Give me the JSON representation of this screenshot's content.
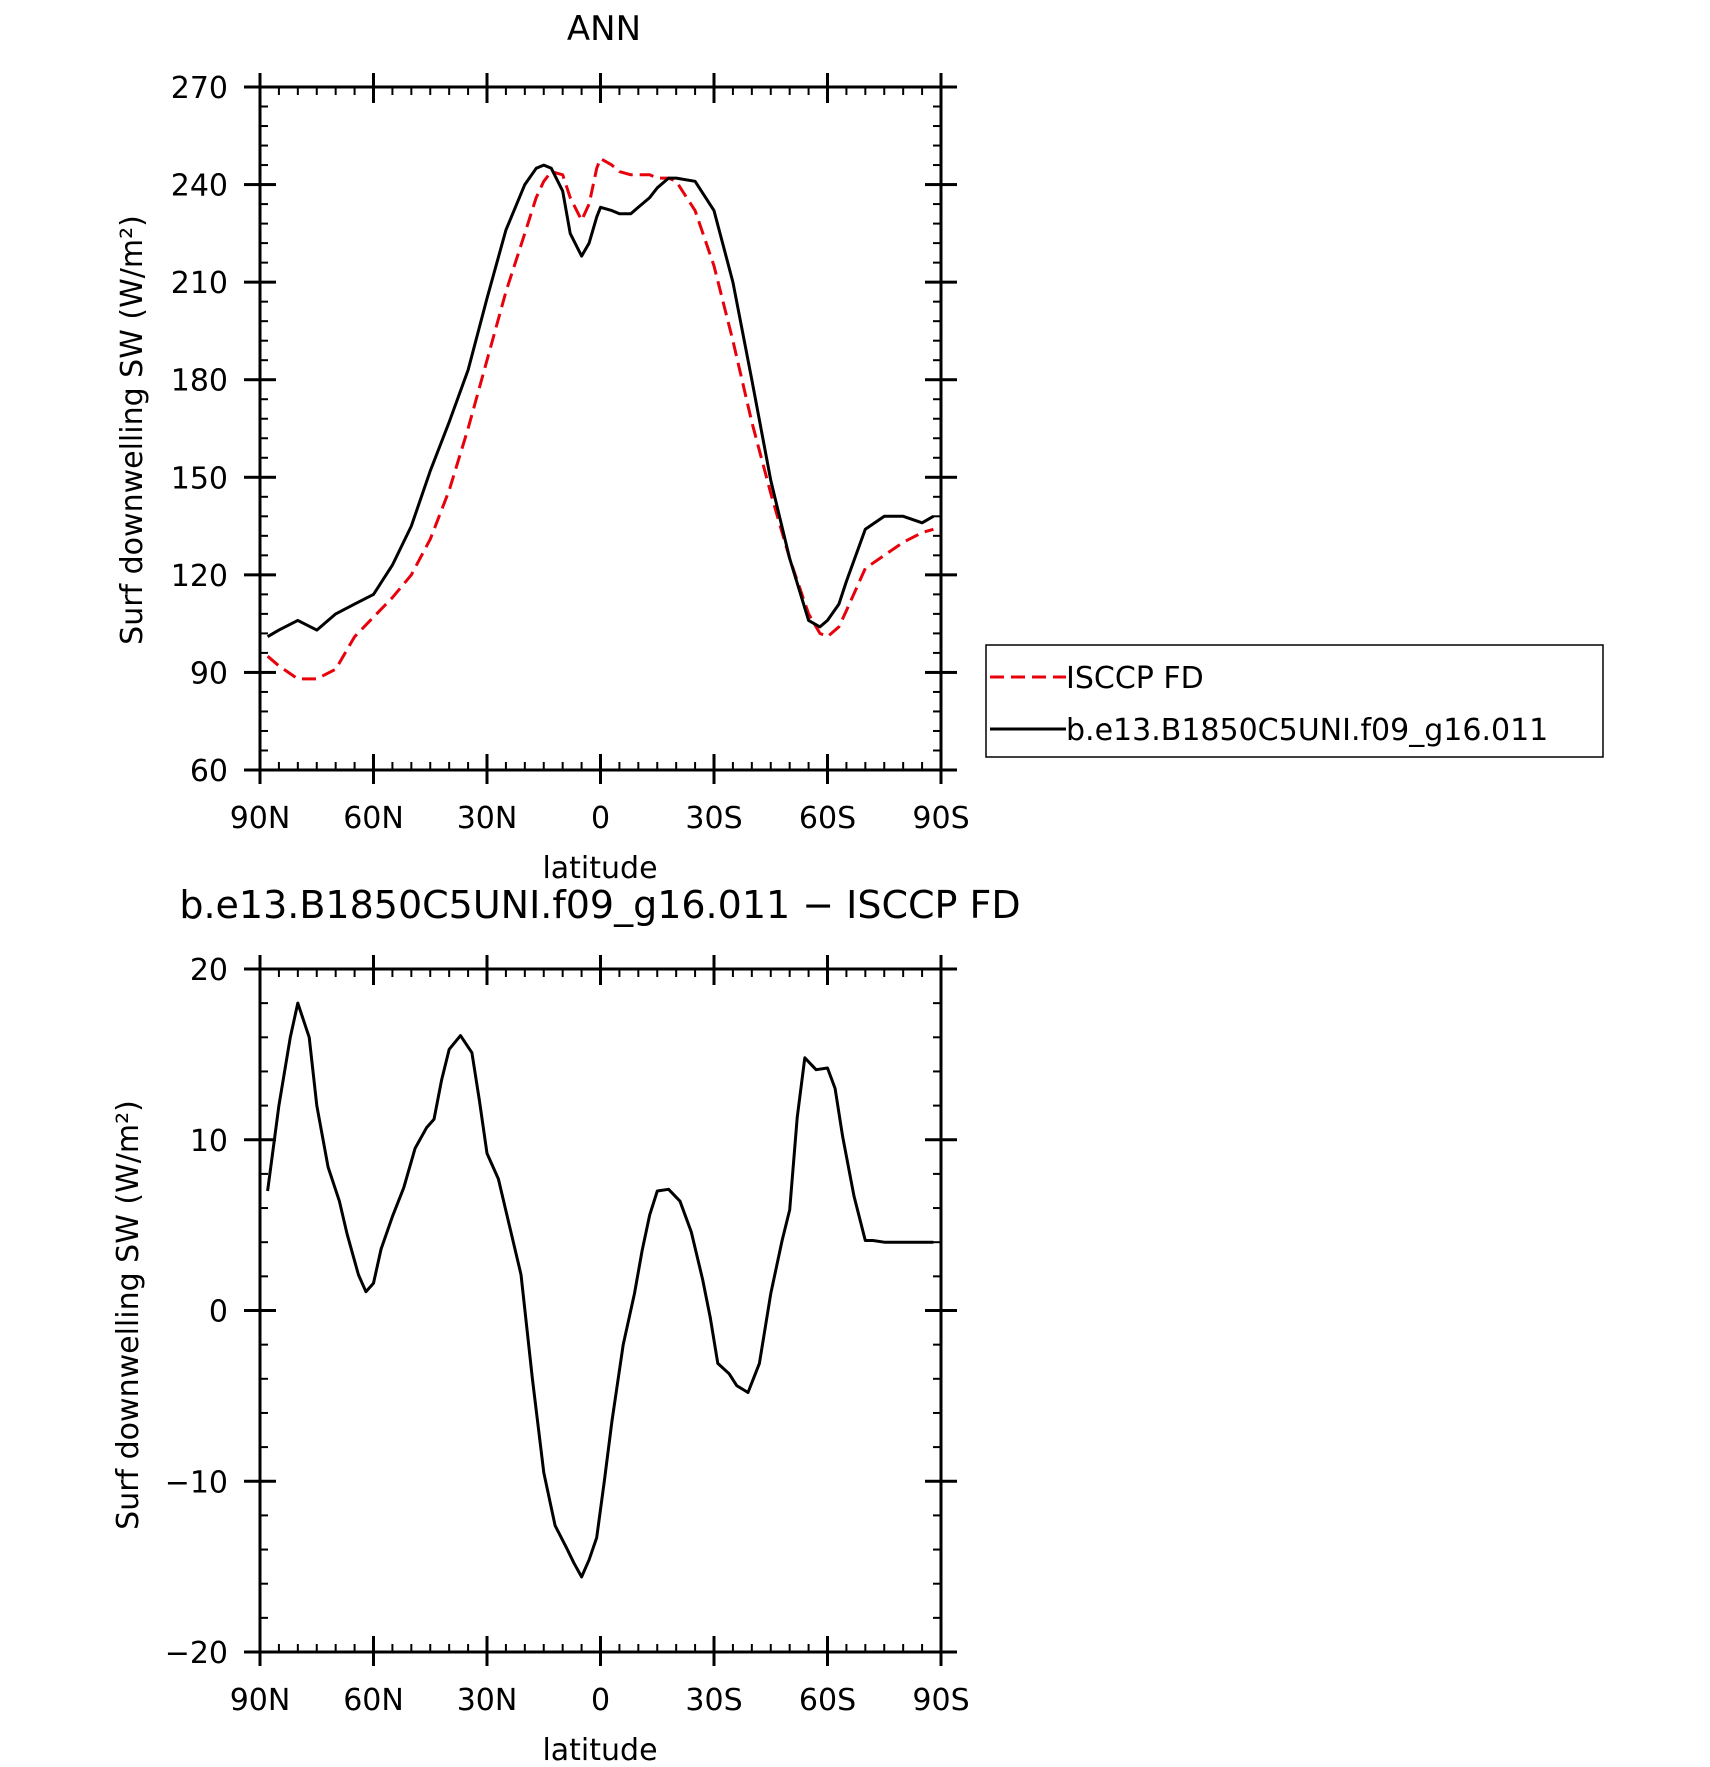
{
  "chart_data": [
    {
      "type": "line",
      "title": "ANN",
      "xlabel": "latitude",
      "ylabel": "Surf downwelling SW (W/m²)",
      "xlim": [
        90,
        -90
      ],
      "ylim": [
        60,
        270
      ],
      "x_ticks": [
        {
          "value": 90,
          "label": "90N"
        },
        {
          "value": 60,
          "label": "60N"
        },
        {
          "value": 30,
          "label": "30N"
        },
        {
          "value": 0,
          "label": "0"
        },
        {
          "value": -30,
          "label": "30S"
        },
        {
          "value": -60,
          "label": "60S"
        },
        {
          "value": -90,
          "label": "90S"
        }
      ],
      "y_ticks": [
        {
          "value": 60,
          "label": "60"
        },
        {
          "value": 90,
          "label": "90"
        },
        {
          "value": 120,
          "label": "120"
        },
        {
          "value": 150,
          "label": "150"
        },
        {
          "value": 180,
          "label": "180"
        },
        {
          "value": 210,
          "label": "210"
        },
        {
          "value": 240,
          "label": "240"
        },
        {
          "value": 270,
          "label": "270"
        }
      ],
      "legend_placement": "right",
      "series": [
        {
          "name": "ISCCP FD",
          "color": "#e8000b",
          "dash": "dashed",
          "x": [
            88,
            85,
            80,
            75,
            70,
            65,
            60,
            55,
            50,
            45,
            40,
            35,
            30,
            25,
            20,
            17,
            15,
            13,
            10,
            8,
            5,
            3,
            1,
            0,
            -3,
            -5,
            -8,
            -10,
            -13,
            -15,
            -18,
            -20,
            -25,
            -30,
            -35,
            -40,
            -45,
            -50,
            -55,
            -58,
            -60,
            -63,
            -65,
            -70,
            -75,
            -80,
            -85,
            -88
          ],
          "y": [
            95,
            92,
            88,
            88,
            91,
            101,
            107,
            113,
            120,
            131,
            146,
            165,
            186,
            207,
            225,
            236,
            241,
            244,
            243,
            236,
            229,
            234,
            245,
            248,
            246,
            244,
            243,
            243,
            243,
            242,
            242,
            241,
            232,
            215,
            192,
            167,
            145,
            125,
            108,
            102,
            101,
            104,
            109,
            122,
            126,
            130,
            133,
            134
          ]
        },
        {
          "name": "b.e13.B1850C5UNI.f09_g16.011",
          "color": "#000000",
          "dash": "solid",
          "x": [
            88,
            85,
            80,
            75,
            70,
            65,
            60,
            55,
            50,
            45,
            40,
            35,
            30,
            25,
            20,
            17,
            15,
            13,
            10,
            8,
            5,
            3,
            1,
            0,
            -3,
            -5,
            -8,
            -10,
            -13,
            -15,
            -18,
            -20,
            -25,
            -30,
            -35,
            -40,
            -45,
            -50,
            -55,
            -58,
            -60,
            -63,
            -65,
            -70,
            -75,
            -80,
            -85,
            -88
          ],
          "y": [
            101,
            103,
            106,
            103,
            108,
            111,
            114,
            123,
            135,
            152,
            167,
            183,
            205,
            226,
            240,
            245,
            246,
            245,
            238,
            225,
            218,
            222,
            230,
            233,
            232,
            231,
            231,
            233,
            236,
            239,
            242,
            242,
            241,
            232,
            210,
            180,
            149,
            125,
            106,
            104,
            106,
            111,
            118,
            134,
            138,
            138,
            136,
            138
          ]
        }
      ]
    },
    {
      "type": "line",
      "title": "b.e13.B1850C5UNI.f09_g16.011 − ISCCP FD",
      "xlabel": "latitude",
      "ylabel": "Surf downwelling SW (W/m²)",
      "xlim": [
        90,
        -90
      ],
      "ylim": [
        -20,
        20
      ],
      "x_ticks": [
        {
          "value": 90,
          "label": "90N"
        },
        {
          "value": 60,
          "label": "60N"
        },
        {
          "value": 30,
          "label": "30N"
        },
        {
          "value": 0,
          "label": "0"
        },
        {
          "value": -30,
          "label": "30S"
        },
        {
          "value": -60,
          "label": "60S"
        },
        {
          "value": -90,
          "label": "90S"
        }
      ],
      "y_ticks": [
        {
          "value": -20,
          "label": "−20"
        },
        {
          "value": -10,
          "label": "−10"
        },
        {
          "value": 0,
          "label": "0"
        },
        {
          "value": 10,
          "label": "10"
        },
        {
          "value": 20,
          "label": "20"
        }
      ],
      "series": [
        {
          "color": "#000000",
          "dash": "solid",
          "x": [
            88,
            85,
            82,
            80,
            77,
            75,
            72,
            69,
            67,
            64,
            62,
            60,
            58,
            55,
            52,
            49,
            46,
            44,
            42,
            40,
            37,
            34,
            32,
            30,
            27,
            24,
            21,
            18,
            15,
            12,
            9,
            7,
            5,
            3,
            1,
            -1,
            -3,
            -6,
            -9,
            -11,
            -13,
            -15,
            -18,
            -21,
            -24,
            -27,
            -29,
            -31,
            -34,
            -36,
            -39,
            -42,
            -45,
            -48,
            -50,
            -52,
            -54,
            -57,
            -60,
            -62,
            -64,
            -67,
            -70,
            -72,
            -75,
            -77,
            -80,
            -82,
            -85,
            -88
          ],
          "y": [
            7,
            12,
            16,
            18,
            16,
            12,
            8.4,
            6.4,
            4.5,
            2.1,
            1.1,
            1.6,
            3.6,
            5.5,
            7.2,
            9.5,
            10.7,
            11.2,
            13.5,
            15.3,
            16.1,
            15.1,
            12.3,
            9.2,
            7.7,
            4.9,
            2.1,
            -4,
            -9.5,
            -12.6,
            -13.9,
            -14.8,
            -15.6,
            -14.6,
            -13.3,
            -10,
            -6.5,
            -2,
            1,
            3.5,
            5.6,
            7,
            7.1,
            6.4,
            4.6,
            1.8,
            -0.4,
            -3.1,
            -3.7,
            -4.4,
            -4.8,
            -3.1,
            1,
            4.1,
            5.9,
            11.3,
            14.8,
            14.1,
            14.2,
            13,
            10.2,
            6.7,
            4.1,
            4.1,
            4,
            4,
            4,
            4,
            4,
            4
          ]
        }
      ]
    }
  ]
}
